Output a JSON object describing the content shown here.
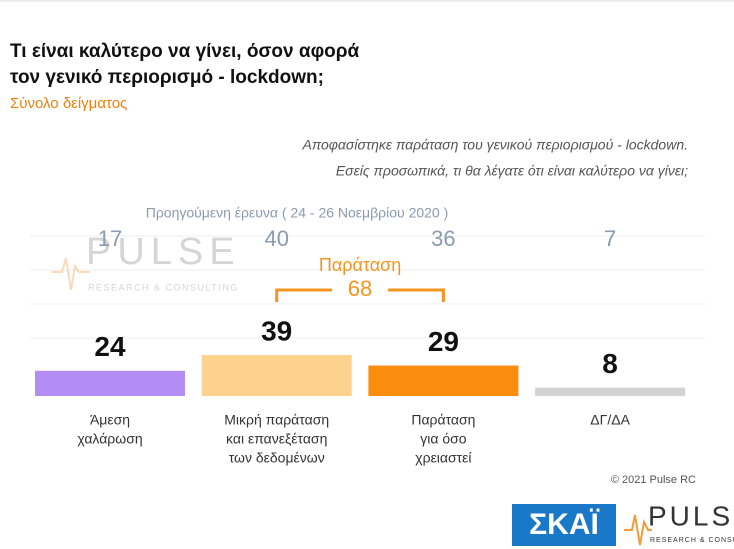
{
  "chart_data": {
    "type": "bar",
    "title": [
      "Τι είναι καλύτερο να γίνει, όσον αφορά",
      "τον γενικό περιορισμό - lockdown;"
    ],
    "subtitle": "Σύνολο δείγματος",
    "question": [
      "Αποφασίστηκε παράταση του γενικού περιορισμού - lockdown.",
      "Εσείς προσωπικά, τι θα λέγατε ότι είναι καλύτερο να γίνει;"
    ],
    "categories": [
      [
        "Άμεση",
        "χαλάρωση"
      ],
      [
        "Μικρή παράταση",
        "και επανεξέταση",
        "των δεδομένων"
      ],
      [
        "Παράταση",
        "για όσο",
        "χρειαστεί"
      ],
      [
        "ΔΓ/ΔΑ"
      ]
    ],
    "values": [
      24,
      39,
      29,
      8
    ],
    "colors": [
      "#b38cf4",
      "#fdd28e",
      "#fa8c0e",
      "#d3d3d3"
    ],
    "previous": {
      "label": "Προηγούμενη έρευνα ( 24 - 26 Νοεμβρίου 2020 )",
      "values": [
        17,
        40,
        36,
        7
      ]
    },
    "annotation": {
      "label": "Παράταση",
      "value": 68
    },
    "copyright": "© 2021 Pulse RC",
    "logos": {
      "pulse": "PULSE",
      "pulse_tagline": "RESEARCH & CONSULTING",
      "skai": "ΣΚΑΪ"
    }
  }
}
